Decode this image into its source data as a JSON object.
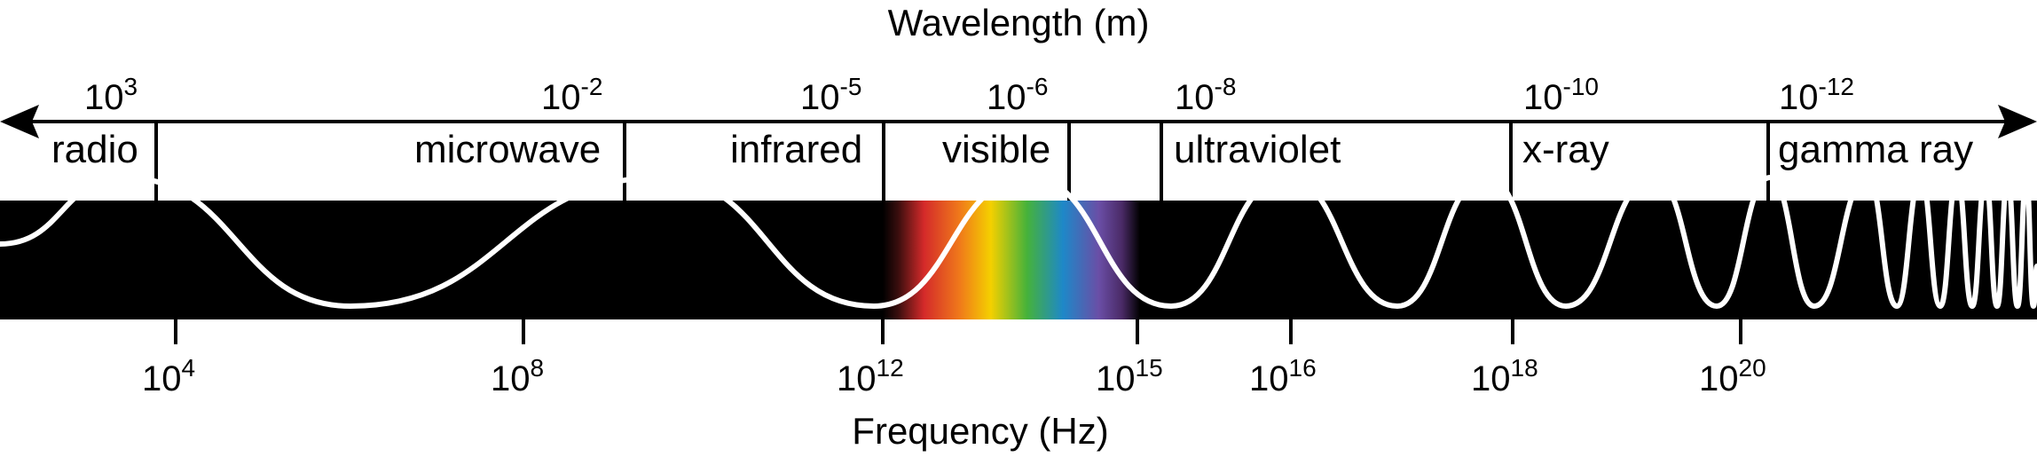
{
  "wavelength_axis": {
    "title": "Wavelength (m)"
  },
  "frequency_axis": {
    "title": "Frequency (Hz)"
  },
  "bands": [
    {
      "name": "radio",
      "wavelength_base": "10",
      "wavelength_exp": "3"
    },
    {
      "name": "microwave",
      "wavelength_base": "10",
      "wavelength_exp": "-2"
    },
    {
      "name": "infrared",
      "wavelength_base": "10",
      "wavelength_exp": "-5"
    },
    {
      "name": "visible",
      "wavelength_base": "10",
      "wavelength_exp": "-6"
    },
    {
      "name": "ultraviolet",
      "wavelength_base": "10",
      "wavelength_exp": "-8"
    },
    {
      "name": "x-ray",
      "wavelength_base": "10",
      "wavelength_exp": "-10"
    },
    {
      "name": "gamma ray",
      "wavelength_base": "10",
      "wavelength_exp": "-12"
    }
  ],
  "frequency_ticks": [
    {
      "base": "10",
      "exp": "4"
    },
    {
      "base": "10",
      "exp": "8"
    },
    {
      "base": "10",
      "exp": "12"
    },
    {
      "base": "10",
      "exp": "15"
    },
    {
      "base": "10",
      "exp": "16"
    },
    {
      "base": "10",
      "exp": "18"
    },
    {
      "base": "10",
      "exp": "20"
    }
  ],
  "colors": {
    "band_background": "#000000",
    "wave_stroke": "#ffffff",
    "ink": "#000000",
    "spectrum": [
      "#000000",
      "#d42a2a",
      "#f07a1a",
      "#f4d000",
      "#46b23a",
      "#1e88c8",
      "#5a4ea6",
      "#7a3e8e",
      "#000000"
    ]
  }
}
